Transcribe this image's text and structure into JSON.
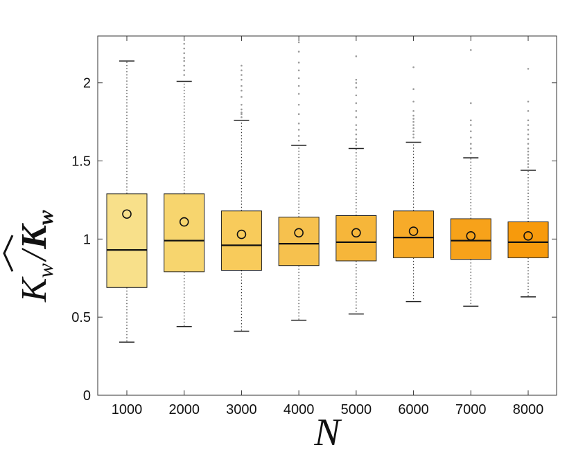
{
  "chart_data": {
    "type": "box",
    "title": "",
    "xlabel": "N",
    "ylabel_main": "K",
    "ylabel_sub": "w",
    "categories": [
      "1000",
      "2000",
      "3000",
      "4000",
      "5000",
      "6000",
      "7000",
      "8000"
    ],
    "ylim": [
      0,
      2.3
    ],
    "yticks": [
      0,
      0.5,
      1,
      1.5,
      2
    ],
    "ytick_labels": [
      "0",
      "0.5",
      "1",
      "1.5",
      "2"
    ],
    "grid": false,
    "box_colors": [
      "#f8e08a",
      "#f7d56e",
      "#f8cb5b",
      "#f6c14e",
      "#f6b63a",
      "#f7ab29",
      "#f7a21a",
      "#f79a0c"
    ],
    "boxes": [
      {
        "whisker_low": 0.34,
        "q1": 0.69,
        "median": 0.93,
        "q3": 1.29,
        "whisker_high": 2.14,
        "mean": 1.16,
        "outliers": []
      },
      {
        "whisker_low": 0.44,
        "q1": 0.79,
        "median": 0.99,
        "q3": 1.29,
        "whisker_high": 2.01,
        "mean": 1.11,
        "outliers": [
          2.05,
          2.08,
          2.11,
          2.14,
          2.16,
          2.19,
          2.22,
          2.25
        ]
      },
      {
        "whisker_low": 0.41,
        "q1": 0.8,
        "median": 0.96,
        "q3": 1.18,
        "whisker_high": 1.76,
        "mean": 1.03,
        "outliers": [
          1.78,
          1.8,
          1.81,
          1.83,
          1.86,
          1.91,
          1.95,
          1.98,
          2.02,
          2.05,
          2.08,
          2.11
        ]
      },
      {
        "whisker_low": 0.48,
        "q1": 0.83,
        "median": 0.97,
        "q3": 1.14,
        "whisker_high": 1.6,
        "mean": 1.04,
        "outliers": [
          1.63,
          1.66,
          1.7,
          1.74,
          1.8,
          1.86,
          1.93,
          1.98,
          2.03,
          2.08,
          2.13,
          2.2,
          2.26
        ]
      },
      {
        "whisker_low": 0.52,
        "q1": 0.86,
        "median": 0.98,
        "q3": 1.15,
        "whisker_high": 1.58,
        "mean": 1.04,
        "outliers": [
          1.6,
          1.62,
          1.64,
          1.67,
          1.7,
          1.73,
          1.78,
          1.82,
          1.87,
          1.92,
          1.97,
          2.0,
          2.02,
          2.17
        ]
      },
      {
        "whisker_low": 0.6,
        "q1": 0.88,
        "median": 1.01,
        "q3": 1.18,
        "whisker_high": 1.62,
        "mean": 1.05,
        "outliers": [
          1.65,
          1.67,
          1.69,
          1.71,
          1.73,
          1.75,
          1.77,
          1.79,
          1.82,
          1.88,
          1.96,
          2.1
        ]
      },
      {
        "whisker_low": 0.57,
        "q1": 0.87,
        "median": 0.99,
        "q3": 1.13,
        "whisker_high": 1.52,
        "mean": 1.02,
        "outliers": [
          1.55,
          1.58,
          1.61,
          1.65,
          1.69,
          1.73,
          1.76,
          1.87,
          2.21
        ]
      },
      {
        "whisker_low": 0.63,
        "q1": 0.88,
        "median": 0.98,
        "q3": 1.11,
        "whisker_high": 1.44,
        "mean": 1.02,
        "outliers": [
          1.46,
          1.48,
          1.5,
          1.52,
          1.54,
          1.56,
          1.58,
          1.61,
          1.64,
          1.67,
          1.7,
          1.73,
          1.76,
          1.82,
          1.88,
          2.09
        ]
      }
    ]
  }
}
